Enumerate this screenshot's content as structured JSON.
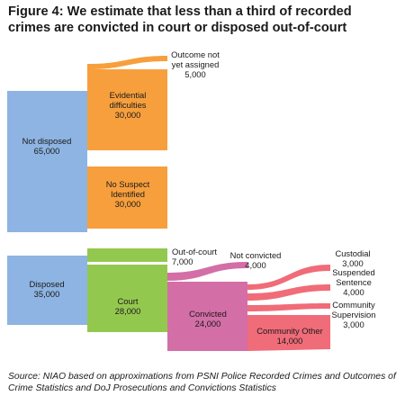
{
  "title": "Figure 4: We estimate that less than a third of recorded crimes are convicted in court or disposed out-of-court",
  "source": "Source: NIAO based on approximations from PSNI Police Recorded Crimes and Outcomes of Crime Statistics and DoJ Prosecutions and Convictions Statistics",
  "colors": {
    "not_disposed": "#8db4e2",
    "not_disposed_children": "#f79f3d",
    "disposed": "#8db4e2",
    "out_of_court": "#93c84f",
    "court": "#93c84f",
    "convicted": "#d36ea6",
    "not_convicted": "#d36ea6",
    "sentences": "#f06c78"
  },
  "nodes": [
    {
      "id": "not_disposed",
      "label": "Not disposed",
      "value": "65,000"
    },
    {
      "id": "outcome_not_assigned",
      "label": "Outcome not yet assigned",
      "value": "5,000"
    },
    {
      "id": "evidential",
      "label": "Evidential difficulties",
      "value": "30,000"
    },
    {
      "id": "no_suspect",
      "label": "No Suspect Identified",
      "value": "30,000"
    },
    {
      "id": "disposed",
      "label": "Disposed",
      "value": "35,000"
    },
    {
      "id": "out_of_court",
      "label": "Out-of-court",
      "value": "7,000"
    },
    {
      "id": "court",
      "label": "Court",
      "value": "28,000"
    },
    {
      "id": "not_convicted",
      "label": "Not convicted",
      "value": "4,000"
    },
    {
      "id": "convicted",
      "label": "Convicted",
      "value": "24,000"
    },
    {
      "id": "custodial",
      "label": "Custodial",
      "value": "3,000"
    },
    {
      "id": "suspended",
      "label": "Suspended Sentence",
      "value": "4,000"
    },
    {
      "id": "community_supervision",
      "label": "Community Supervision",
      "value": "3,000"
    },
    {
      "id": "community_other",
      "label": "Community Other",
      "value": "14,000"
    }
  ],
  "flows": [
    {
      "from": "not_disposed",
      "to": "outcome_not_assigned",
      "value": 5000
    },
    {
      "from": "not_disposed",
      "to": "evidential",
      "value": 30000
    },
    {
      "from": "not_disposed",
      "to": "no_suspect",
      "value": 30000
    },
    {
      "from": "disposed",
      "to": "out_of_court",
      "value": 7000
    },
    {
      "from": "disposed",
      "to": "court",
      "value": 28000
    },
    {
      "from": "court",
      "to": "not_convicted",
      "value": 4000
    },
    {
      "from": "court",
      "to": "convicted",
      "value": 24000
    },
    {
      "from": "convicted",
      "to": "custodial",
      "value": 3000
    },
    {
      "from": "convicted",
      "to": "suspended",
      "value": 4000
    },
    {
      "from": "convicted",
      "to": "community_supervision",
      "value": 3000
    },
    {
      "from": "convicted",
      "to": "community_other",
      "value": 14000
    }
  ]
}
